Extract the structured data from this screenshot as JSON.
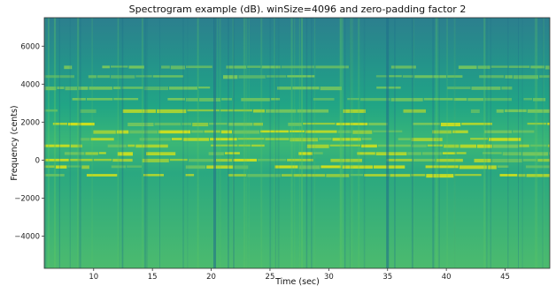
{
  "chart_data": {
    "type": "heatmap",
    "title": "Spectrogram example (dB). winSize=4096 and zero-padding factor 2",
    "xlabel": "Time (sec)",
    "ylabel": "Frequency (cents)",
    "xlim": [
      5.8,
      48.8
    ],
    "ylim": [
      -5700,
      7500
    ],
    "x_ticks": [
      10,
      15,
      20,
      25,
      30,
      35,
      40,
      45
    ],
    "y_ticks": [
      -4000,
      -2000,
      0,
      2000,
      4000,
      6000
    ],
    "colormap": "viridis",
    "grid": false,
    "colors": {
      "low": "#2f6f8e",
      "mid": "#21a585",
      "high": "#d4e21a"
    },
    "harmonic_bands_cents": [
      -800,
      -350,
      0,
      350,
      750,
      1100,
      1500,
      1900,
      2600,
      3200,
      3800,
      4400,
      4900
    ],
    "dark_vertical_gaps_sec": [
      20.3,
      35.0
    ]
  }
}
